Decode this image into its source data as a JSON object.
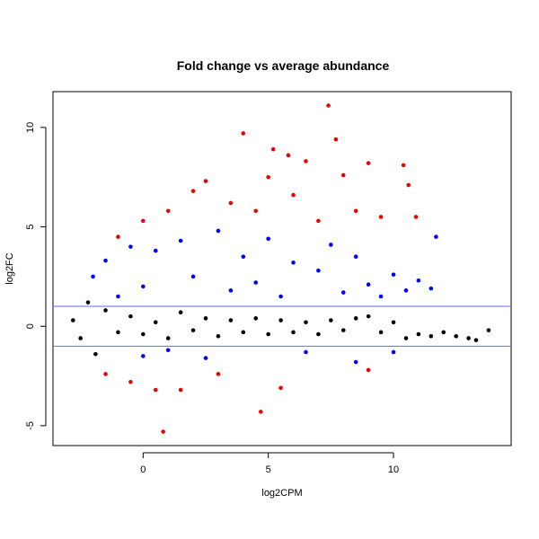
{
  "chart_data": {
    "type": "scatter",
    "title": "Fold change vs average abundance",
    "xlabel": "log2CPM",
    "ylabel": "log2FC",
    "xlim": [
      -3.6,
      14.7
    ],
    "ylim": [
      -6,
      11.8
    ],
    "x_ticks": [
      0,
      5,
      10
    ],
    "y_ticks": [
      -5,
      0,
      5,
      10
    ],
    "x_tick_labels": [
      "0",
      "5",
      "10"
    ],
    "y_tick_labels": [
      "-5",
      "0",
      "5",
      "10"
    ],
    "hlines": [
      1,
      -1
    ],
    "grid": false,
    "legend": "none",
    "colors": {
      "not_significant": "#000000",
      "significant_small_fc": "#0000ff",
      "significant_large_fc": "#ee0000",
      "threshold_line": "#6666ff"
    },
    "series": [
      {
        "values": [
          [
            -2.8,
            0.3
          ],
          [
            -2.5,
            -0.6
          ],
          [
            -2.2,
            1.2
          ],
          [
            -1.9,
            -1.4
          ],
          [
            -1.5,
            0.8
          ],
          [
            -1,
            -0.3
          ],
          [
            -0.5,
            0.5
          ],
          [
            0,
            -0.4
          ],
          [
            0.5,
            0.2
          ],
          [
            1,
            -0.6
          ],
          [
            1.5,
            0.7
          ],
          [
            2,
            -0.2
          ],
          [
            2.5,
            0.4
          ],
          [
            3,
            -0.5
          ],
          [
            3.5,
            0.3
          ],
          [
            4,
            -0.3
          ],
          [
            4.5,
            0.4
          ],
          [
            5,
            -0.4
          ],
          [
            5.5,
            0.3
          ],
          [
            6,
            -0.3
          ],
          [
            6.5,
            0.2
          ],
          [
            7,
            -0.4
          ],
          [
            7.5,
            0.3
          ],
          [
            8,
            -0.2
          ],
          [
            8.5,
            0.4
          ],
          [
            9,
            0.5
          ],
          [
            9.5,
            -0.3
          ],
          [
            10,
            0.2
          ],
          [
            10.5,
            -0.6
          ],
          [
            11,
            -0.4
          ],
          [
            11.5,
            -0.5
          ],
          [
            12,
            -0.3
          ],
          [
            12.5,
            -0.5
          ],
          [
            13,
            -0.6
          ],
          [
            13.3,
            -0.7
          ],
          [
            13.8,
            -0.2
          ]
        ]
      },
      {
        "values": [
          [
            -2,
            2.5
          ],
          [
            -1.5,
            3.3
          ],
          [
            -1,
            1.5
          ],
          [
            -0.5,
            4
          ],
          [
            0,
            2
          ],
          [
            0,
            -1.5
          ],
          [
            0.5,
            3.8
          ],
          [
            1,
            -1.2
          ],
          [
            1.5,
            4.3
          ],
          [
            2,
            2.5
          ],
          [
            2.5,
            -1.6
          ],
          [
            3,
            4.8
          ],
          [
            3.5,
            1.8
          ],
          [
            4,
            3.5
          ],
          [
            4.5,
            2.2
          ],
          [
            5,
            4.4
          ],
          [
            5.5,
            1.5
          ],
          [
            6,
            3.2
          ],
          [
            6.5,
            -1.3
          ],
          [
            7,
            2.8
          ],
          [
            7.5,
            4.1
          ],
          [
            8,
            1.7
          ],
          [
            8.5,
            3.5
          ],
          [
            9,
            2.1
          ],
          [
            9.5,
            1.5
          ],
          [
            10,
            2.6
          ],
          [
            10.5,
            1.8
          ],
          [
            11,
            2.3
          ],
          [
            11.5,
            1.9
          ],
          [
            11.7,
            4.5
          ],
          [
            10,
            -1.3
          ],
          [
            8.5,
            -1.8
          ]
        ]
      },
      {
        "values": [
          [
            -1.5,
            -2.4
          ],
          [
            -1,
            4.5
          ],
          [
            -0.5,
            -2.8
          ],
          [
            0,
            5.3
          ],
          [
            0.5,
            -3.2
          ],
          [
            0.8,
            -5.3
          ],
          [
            1,
            5.8
          ],
          [
            1.5,
            -3.2
          ],
          [
            2,
            6.8
          ],
          [
            2.5,
            7.3
          ],
          [
            3,
            -2.4
          ],
          [
            3.5,
            6.2
          ],
          [
            4,
            9.7
          ],
          [
            4.5,
            5.8
          ],
          [
            5,
            7.5
          ],
          [
            5.2,
            8.9
          ],
          [
            5.5,
            -3.1
          ],
          [
            5.8,
            8.6
          ],
          [
            6,
            6.6
          ],
          [
            6.5,
            8.3
          ],
          [
            7,
            5.3
          ],
          [
            7.4,
            11.1
          ],
          [
            7.7,
            9.4
          ],
          [
            8,
            7.6
          ],
          [
            8.5,
            5.8
          ],
          [
            9,
            8.2
          ],
          [
            9.5,
            5.5
          ],
          [
            10.4,
            8.1
          ],
          [
            10.6,
            7.1
          ],
          [
            10.9,
            5.5
          ],
          [
            4.7,
            -4.3
          ],
          [
            9,
            -2.2
          ]
        ]
      }
    ]
  }
}
